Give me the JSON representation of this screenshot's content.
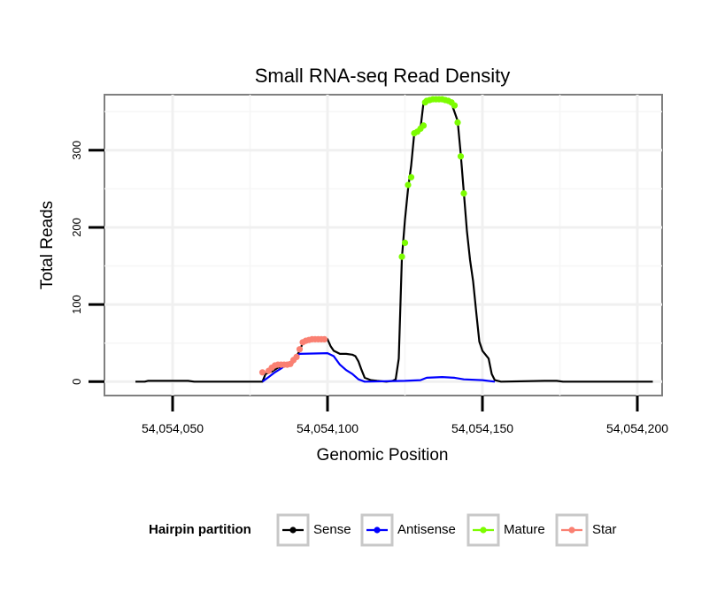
{
  "chart_data": {
    "type": "line",
    "title": "Small RNA-seq Read Density",
    "xlabel": "Genomic Position",
    "ylabel": "Total Reads",
    "xlim": [
      54054028,
      54054208
    ],
    "ylim": [
      -18,
      372
    ],
    "x_ticks": [
      54054050,
      54054100,
      54054150,
      54054200
    ],
    "x_tick_labels": [
      "54,054,050",
      "54,054,100",
      "54,054,150",
      "54,054,200"
    ],
    "y_ticks": [
      0,
      100,
      200,
      300
    ],
    "y_tick_labels": [
      "0",
      "100",
      "200",
      "300"
    ],
    "grid": true,
    "legend": {
      "title": "Hairpin partition",
      "position": "bottom",
      "entries": [
        {
          "label": "Sense",
          "color": "#000000"
        },
        {
          "label": "Antisense",
          "color": "#0000ff"
        },
        {
          "label": "Mature",
          "color": "#7cfc00"
        },
        {
          "label": "Star",
          "color": "#fa8072"
        }
      ]
    },
    "series": [
      {
        "name": "Sense",
        "color": "#000000",
        "style": "line",
        "points": [
          [
            54054038,
            0
          ],
          [
            54054041,
            0
          ],
          [
            54054042,
            1
          ],
          [
            54054055,
            1
          ],
          [
            54054057,
            0
          ],
          [
            54054079,
            0
          ],
          [
            54054080,
            10
          ],
          [
            54054082,
            13
          ],
          [
            54054084,
            18
          ],
          [
            54054086,
            20
          ],
          [
            54054088,
            22
          ],
          [
            54054089,
            25
          ],
          [
            54054090,
            33
          ],
          [
            54054091,
            40
          ],
          [
            54054092,
            50
          ],
          [
            54054093,
            52
          ],
          [
            54054095,
            54
          ],
          [
            54054098,
            55
          ],
          [
            54054100,
            55
          ],
          [
            54054101,
            46
          ],
          [
            54054102,
            40
          ],
          [
            54054104,
            36
          ],
          [
            54054106,
            36
          ],
          [
            54054108,
            35
          ],
          [
            54054109,
            33
          ],
          [
            54054110,
            26
          ],
          [
            54054111,
            15
          ],
          [
            54054112,
            5
          ],
          [
            54054114,
            2
          ],
          [
            54054116,
            1
          ],
          [
            54054119,
            0
          ],
          [
            54054121,
            1
          ],
          [
            54054122,
            3
          ],
          [
            54054123,
            30
          ],
          [
            54054124,
            160
          ],
          [
            54054125,
            210
          ],
          [
            54054126,
            250
          ],
          [
            54054127,
            280
          ],
          [
            54054128,
            322
          ],
          [
            54054129,
            325
          ],
          [
            54054130,
            328
          ],
          [
            54054131,
            362
          ],
          [
            54054132,
            365
          ],
          [
            54054133,
            366
          ],
          [
            54054135,
            366
          ],
          [
            54054137,
            366
          ],
          [
            54054139,
            364
          ],
          [
            54054140,
            361
          ],
          [
            54054142,
            338
          ],
          [
            54054143,
            295
          ],
          [
            54054144,
            245
          ],
          [
            54054145,
            195
          ],
          [
            54054146,
            158
          ],
          [
            54054147,
            130
          ],
          [
            54054148,
            90
          ],
          [
            54054149,
            52
          ],
          [
            54054150,
            40
          ],
          [
            54054152,
            30
          ],
          [
            54054153,
            10
          ],
          [
            54054154,
            2
          ],
          [
            54054156,
            0
          ],
          [
            54054170,
            1
          ],
          [
            54054174,
            1
          ],
          [
            54054176,
            0
          ],
          [
            54054205,
            0
          ]
        ]
      },
      {
        "name": "Antisense",
        "color": "#0000ff",
        "style": "line",
        "points": [
          [
            54054079,
            0
          ],
          [
            54054081,
            6
          ],
          [
            54054083,
            12
          ],
          [
            54054085,
            17
          ],
          [
            54054086,
            20
          ],
          [
            54054088,
            25
          ],
          [
            54054089,
            30
          ],
          [
            54054091,
            36
          ],
          [
            54054100,
            37
          ],
          [
            54054102,
            33
          ],
          [
            54054104,
            22
          ],
          [
            54054106,
            15
          ],
          [
            54054108,
            10
          ],
          [
            54054110,
            3
          ],
          [
            54054112,
            0
          ],
          [
            54054125,
            1
          ],
          [
            54054130,
            2
          ],
          [
            54054132,
            5
          ],
          [
            54054137,
            6
          ],
          [
            54054141,
            5
          ],
          [
            54054144,
            3
          ],
          [
            54054150,
            2
          ],
          [
            54054154,
            0
          ]
        ]
      },
      {
        "name": "Mature",
        "color": "#7cfc00",
        "style": "points",
        "points": [
          [
            54054124,
            162
          ],
          [
            54054125,
            180
          ],
          [
            54054126,
            255
          ],
          [
            54054127,
            265
          ],
          [
            54054128,
            322
          ],
          [
            54054129,
            324
          ],
          [
            54054130,
            328
          ],
          [
            54054131,
            332
          ],
          [
            54054131.5,
            362
          ],
          [
            54054132,
            364
          ],
          [
            54054133,
            365
          ],
          [
            54054134,
            366
          ],
          [
            54054135,
            366
          ],
          [
            54054136,
            366
          ],
          [
            54054137,
            366
          ],
          [
            54054138,
            365
          ],
          [
            54054139,
            364
          ],
          [
            54054140,
            362
          ],
          [
            54054141,
            358
          ],
          [
            54054142,
            336
          ],
          [
            54054143,
            292
          ],
          [
            54054144,
            244
          ]
        ]
      },
      {
        "name": "Star",
        "color": "#fa8072",
        "style": "points",
        "points": [
          [
            54054079,
            12
          ],
          [
            54054081,
            14
          ],
          [
            54054082,
            18
          ],
          [
            54054083,
            21
          ],
          [
            54054084,
            22
          ],
          [
            54054085,
            22
          ],
          [
            54054086,
            22
          ],
          [
            54054087,
            22
          ],
          [
            54054088,
            23
          ],
          [
            54054089,
            28
          ],
          [
            54054090,
            32
          ],
          [
            54054091,
            42
          ],
          [
            54054092,
            51
          ],
          [
            54054093,
            53
          ],
          [
            54054094,
            54
          ],
          [
            54054095,
            55
          ],
          [
            54054096,
            55
          ],
          [
            54054097,
            55
          ],
          [
            54054098,
            55
          ],
          [
            54054099,
            55
          ]
        ]
      }
    ]
  }
}
